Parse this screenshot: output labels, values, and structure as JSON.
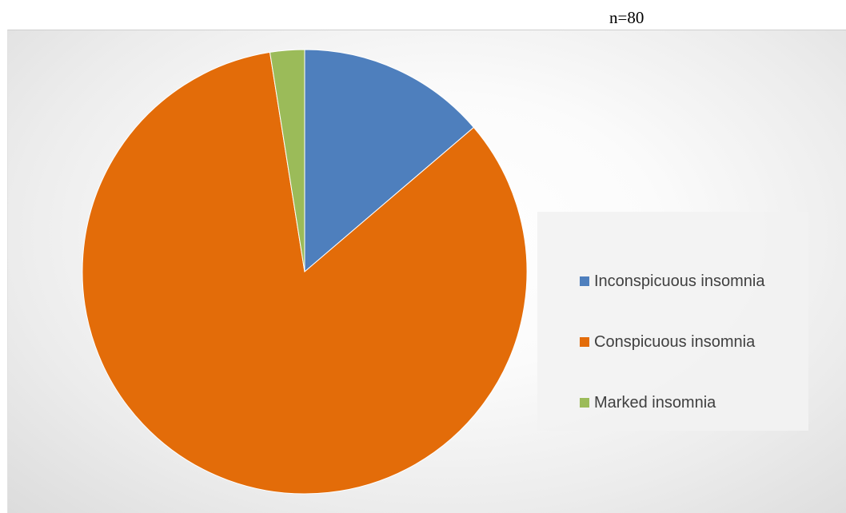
{
  "chart_data": {
    "type": "pie",
    "annotation": "n=80",
    "title": "",
    "categories": [
      "Inconspicuous insomnia",
      "Conspicuous insomnia",
      "Marked insomnia"
    ],
    "values": [
      11,
      67,
      2
    ],
    "colors": [
      "#4e7fbd",
      "#e36c09",
      "#9bbb59"
    ],
    "legend_position": "right"
  }
}
